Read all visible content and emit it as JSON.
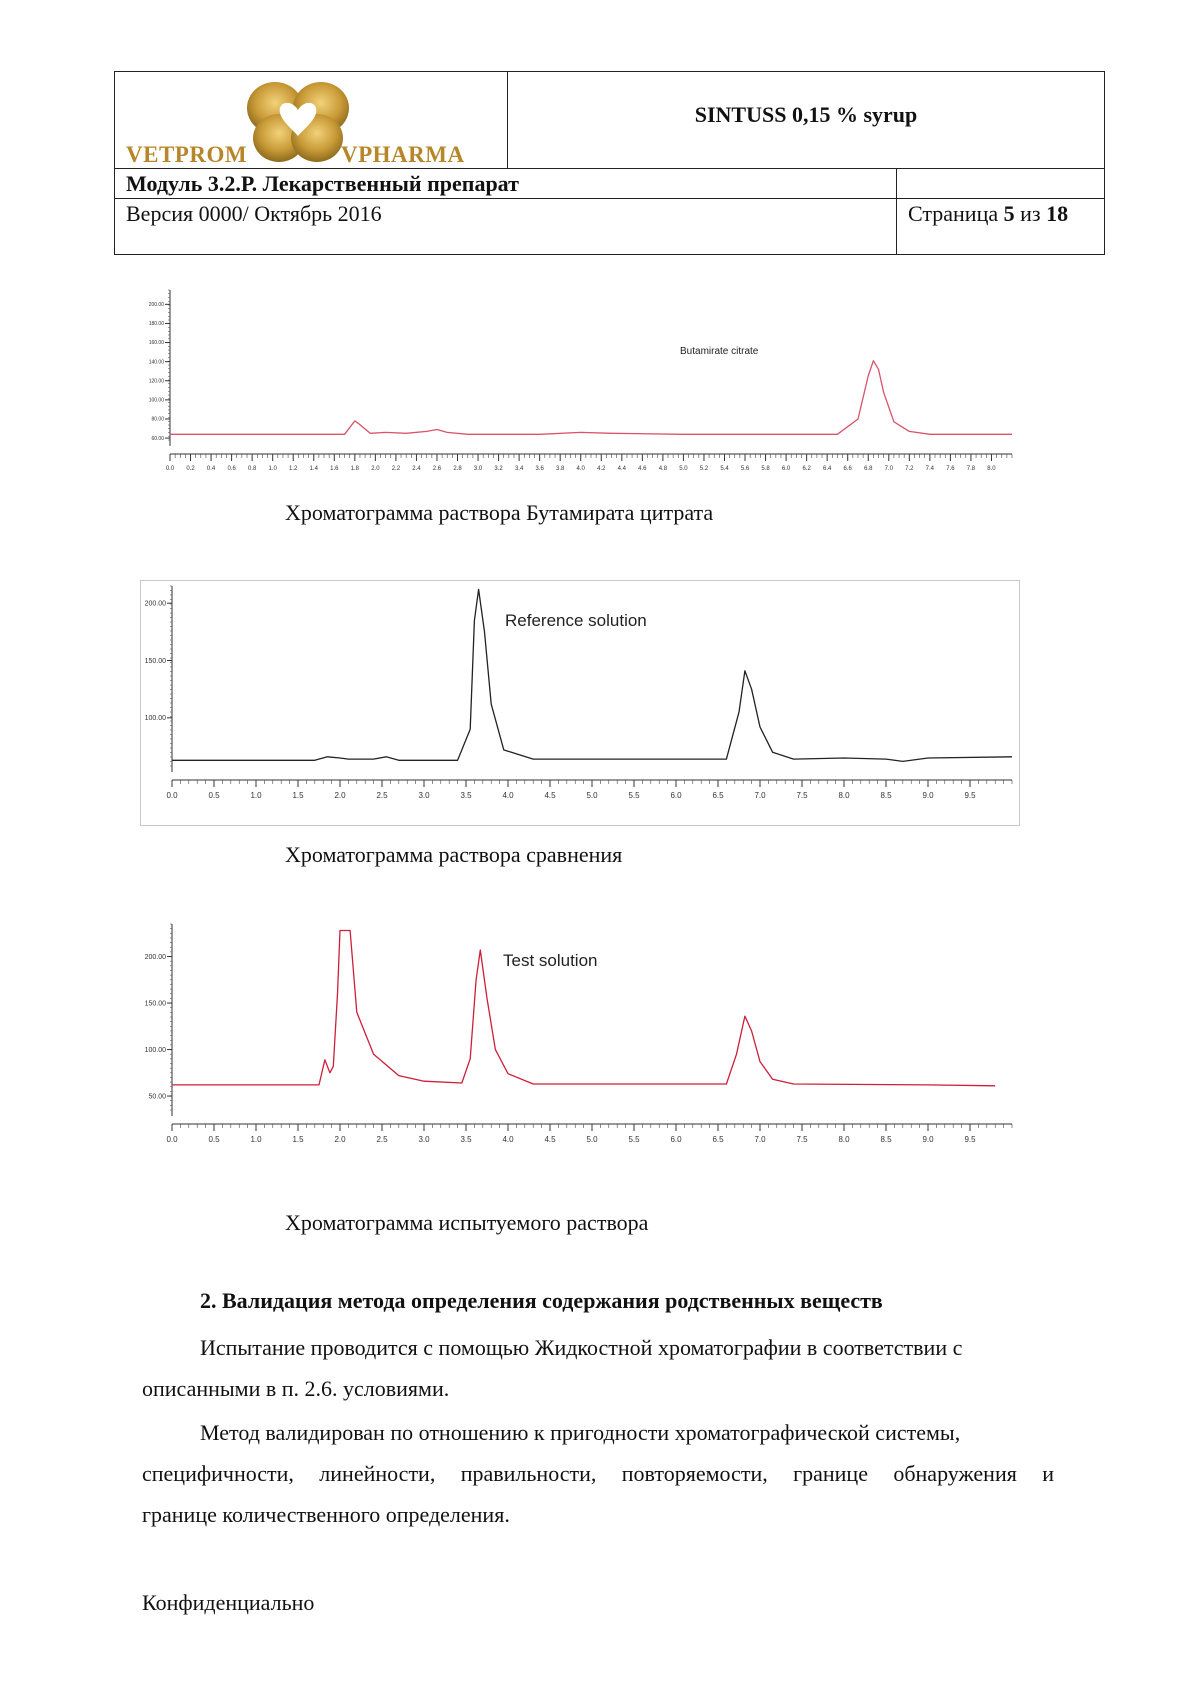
{
  "header": {
    "brand_left": "VETPROM",
    "brand_right": "VPHARMA",
    "product": "SINTUSS 0,15 % syrup",
    "module": "Модуль 3.2.Р. Лекарственный препарат",
    "version": "Версия 0000/ Октябрь 2016",
    "page_prefix": "Страница ",
    "page_current": "5",
    "page_middle": " из ",
    "page_total": "18",
    "logo_color": "#b8862a"
  },
  "chart_data": [
    {
      "type": "line",
      "title": "Butamirate citrate",
      "caption": "Хроматограмма раствора Бутамирата цитрата",
      "color": "#d9536a",
      "xlim": [
        0,
        8.2
      ],
      "ylim": [
        58,
        215
      ],
      "x_ticks": [
        "0.0",
        "0.2",
        "0.4",
        "0.6",
        "0.8",
        "1.0",
        "1.2",
        "1.4",
        "1.6",
        "1.8",
        "2.0",
        "2.2",
        "2.4",
        "2.6",
        "2.8",
        "3.0",
        "3.2",
        "3.4",
        "3.6",
        "3.8",
        "4.0",
        "4.2",
        "4.4",
        "4.6",
        "4.8",
        "5.0",
        "5.2",
        "5.4",
        "5.6",
        "5.8",
        "6.0",
        "6.2",
        "6.4",
        "6.6",
        "6.8",
        "7.0",
        "7.2",
        "7.4",
        "7.6",
        "7.8",
        "8.0"
      ],
      "y_ticks": [
        "60.00",
        "80.00",
        "100.00",
        "120.00",
        "140.00",
        "160.00",
        "180.00",
        "200.00"
      ],
      "series": [
        {
          "x": [
            0.0,
            1.7,
            1.8,
            1.85,
            1.95,
            2.1,
            2.3,
            2.5,
            2.6,
            2.7,
            2.9,
            3.6,
            4.0,
            4.3,
            5.0,
            6.0,
            6.5,
            6.7,
            6.8,
            6.85,
            6.9,
            6.95,
            7.05,
            7.2,
            7.4,
            8.2
          ],
          "y": [
            64,
            64,
            78,
            74,
            65,
            66,
            65,
            67,
            69,
            66,
            64,
            64,
            66,
            65,
            64,
            64,
            64,
            80,
            125,
            141,
            132,
            108,
            77,
            67,
            64,
            64
          ]
        }
      ]
    },
    {
      "type": "line",
      "title": "Reference solution",
      "caption": "Хроматограмма раствора сравнения",
      "color": "#222222",
      "xlim": [
        0,
        10
      ],
      "ylim": [
        58,
        215
      ],
      "x_ticks": [
        "0.0",
        "0.5",
        "1.0",
        "1.5",
        "2.0",
        "2.5",
        "3.0",
        "3.5",
        "4.0",
        "4.5",
        "5.0",
        "5.5",
        "6.0",
        "6.5",
        "7.0",
        "7.5",
        "8.0",
        "8.5",
        "9.0",
        "9.5"
      ],
      "y_ticks": [
        "100.00",
        "150.00",
        "200.00"
      ],
      "series": [
        {
          "x": [
            0.0,
            1.7,
            1.85,
            2.0,
            2.1,
            2.4,
            2.55,
            2.7,
            3.4,
            3.55,
            3.6,
            3.65,
            3.72,
            3.8,
            3.95,
            4.3,
            6.6,
            6.75,
            6.82,
            6.9,
            7.0,
            7.15,
            7.4,
            8.0,
            8.5,
            8.7,
            9.0,
            10.0
          ],
          "y": [
            63,
            63,
            66,
            65,
            64,
            64,
            66,
            63,
            63,
            90,
            185,
            212,
            175,
            112,
            72,
            64,
            64,
            105,
            141,
            125,
            92,
            70,
            64,
            65,
            64,
            62,
            65,
            66
          ]
        }
      ]
    },
    {
      "type": "line",
      "title": "Test solution",
      "caption": "Хроматограмма испытуемого раствора",
      "color": "#cc1f3a",
      "xlim": [
        0,
        10
      ],
      "ylim": [
        35,
        235
      ],
      "x_ticks": [
        "0.0",
        "0.5",
        "1.0",
        "1.5",
        "2.0",
        "2.5",
        "3.0",
        "3.5",
        "4.0",
        "4.5",
        "5.0",
        "5.5",
        "6.0",
        "6.5",
        "7.0",
        "7.5",
        "8.0",
        "8.5",
        "9.0",
        "9.5"
      ],
      "y_ticks": [
        "50.00",
        "100.00",
        "150.00",
        "200.00"
      ],
      "series": [
        {
          "x": [
            0.0,
            1.75,
            1.82,
            1.88,
            1.92,
            1.97,
            2.0,
            2.12,
            2.2,
            2.4,
            2.7,
            3.0,
            3.45,
            3.55,
            3.62,
            3.67,
            3.75,
            3.85,
            4.0,
            4.3,
            6.6,
            6.72,
            6.82,
            6.9,
            7.0,
            7.15,
            7.4,
            9.0,
            9.8
          ],
          "y": [
            62,
            62,
            89,
            75,
            82,
            160,
            228,
            228,
            140,
            95,
            72,
            66,
            64,
            90,
            175,
            207,
            155,
            100,
            74,
            63,
            63,
            95,
            136,
            120,
            87,
            68,
            63,
            62,
            61
          ]
        }
      ]
    }
  ],
  "section": {
    "title": "2. Валидация метода определения содержания родственных веществ",
    "para1_line1": "Испытание проводится с помощью Жидкостной хроматографии в соответствии с",
    "para1_line2": "описанными в п. 2.6. условиями.",
    "para2_line1": "Метод валидирован по отношению к пригодности хроматографической системы,",
    "para2_line2": "специфичности, линейности, правильности, повторяемости, границе обнаружения и",
    "para2_line3": "границе количественного определения."
  },
  "footer": {
    "text": "Конфиденциально"
  }
}
